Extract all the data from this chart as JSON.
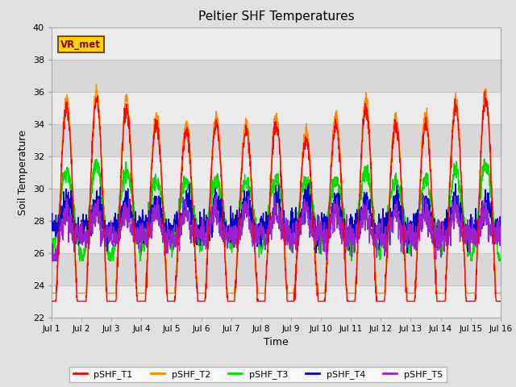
{
  "title": "Peltier SHF Temperatures",
  "xlabel": "Time",
  "ylabel": "Soil Temperature",
  "ylim": [
    22,
    40
  ],
  "xlim": [
    0,
    15
  ],
  "xtick_labels": [
    "Jul 1",
    "Jul 2",
    "Jul 3",
    "Jul 4",
    "Jul 5",
    "Jul 6",
    "Jul 7",
    "Jul 8",
    "Jul 9",
    "Jul 10",
    "Jul 11",
    "Jul 12",
    "Jul 13",
    "Jul 14",
    "Jul 15",
    "Jul 16"
  ],
  "ytick_values": [
    22,
    24,
    26,
    28,
    30,
    32,
    34,
    36,
    38,
    40
  ],
  "annotation_text": "VR_met",
  "colors": {
    "T1": "#ff0000",
    "T2": "#ff8800",
    "T3": "#00dd00",
    "T4": "#0000cc",
    "T5": "#9922cc"
  },
  "legend_labels": [
    "pSHF_T1",
    "pSHF_T2",
    "pSHF_T3",
    "pSHF_T4",
    "pSHF_T5"
  ],
  "fig_bg": "#e0e0e0",
  "band_light": "#ebebeb",
  "band_dark": "#d8d8d8",
  "grid_color": "#c8c8c8"
}
